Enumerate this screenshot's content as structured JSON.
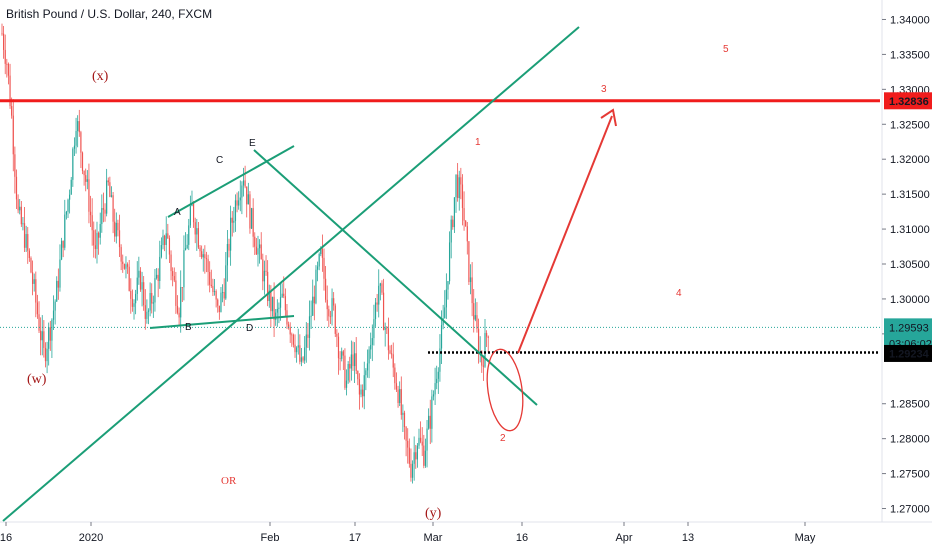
{
  "title": "British Pound / U.S. Dollar, 240, FXCM",
  "colors": {
    "up": "#26a69a",
    "down": "#ef5350",
    "trendline": "#1b9e77",
    "resistance": "#f01c1c",
    "annotation_red": "#e53935",
    "wave_dark_red": "#a31515",
    "current_price": "#26a69a",
    "axis_text": "#131722"
  },
  "price_axis": {
    "ticks": [
      "1.34000",
      "1.33500",
      "1.33000",
      "1.32500",
      "1.32000",
      "1.31500",
      "1.31000",
      "1.30500",
      "1.30000",
      "1.29500",
      "1.28500",
      "1.28000",
      "1.27500",
      "1.27000"
    ]
  },
  "time_axis": {
    "ticks": [
      "16",
      "2020",
      "Feb",
      "17",
      "Mar",
      "16",
      "Apr",
      "13",
      "May"
    ]
  },
  "price_labels": {
    "resistance": "1.32836",
    "current": "1.29593",
    "countdown": "03:06:02",
    "level": "1.29234"
  },
  "wave_labels": {
    "x": "(x)",
    "w": "(w)",
    "y": "(y)",
    "A": "A",
    "B": "B",
    "C": "C",
    "D": "D",
    "E": "E",
    "one": "1",
    "two": "2",
    "three": "3",
    "four": "4",
    "five": "5",
    "or": "OR"
  },
  "chart_data": {
    "type": "candlestick",
    "symbol": "British Pound / U.S. Dollar",
    "timeframe": "240",
    "source": "FXCM",
    "ylim": [
      1.2685,
      1.3415
    ],
    "x_ticks": [
      "16",
      "2020",
      "Feb",
      "17",
      "Mar",
      "16",
      "Apr",
      "13",
      "May"
    ],
    "close_path": [
      [
        0,
        1.338
      ],
      [
        3,
        1.334
      ],
      [
        6,
        1.326
      ],
      [
        10,
        1.312
      ],
      [
        14,
        1.309
      ],
      [
        18,
        1.304
      ],
      [
        22,
        1.298
      ],
      [
        26,
        1.292
      ],
      [
        30,
        1.296
      ],
      [
        34,
        1.301
      ],
      [
        38,
        1.309
      ],
      [
        42,
        1.316
      ],
      [
        46,
        1.326
      ],
      [
        50,
        1.32
      ],
      [
        54,
        1.314
      ],
      [
        58,
        1.306
      ],
      [
        62,
        1.312
      ],
      [
        66,
        1.316
      ],
      [
        70,
        1.31
      ],
      [
        74,
        1.307
      ],
      [
        78,
        1.303
      ],
      [
        82,
        1.3
      ],
      [
        86,
        1.303
      ],
      [
        90,
        1.297
      ],
      [
        94,
        1.301
      ],
      [
        98,
        1.305
      ],
      [
        102,
        1.31
      ],
      [
        106,
        1.303
      ],
      [
        110,
        1.299
      ],
      [
        114,
        1.307
      ],
      [
        118,
        1.313
      ],
      [
        122,
        1.309
      ],
      [
        126,
        1.306
      ],
      [
        130,
        1.302
      ],
      [
        134,
        1.298
      ],
      [
        138,
        1.302
      ],
      [
        142,
        1.31
      ],
      [
        146,
        1.315
      ],
      [
        150,
        1.318
      ],
      [
        154,
        1.312
      ],
      [
        158,
        1.308
      ],
      [
        162,
        1.304
      ],
      [
        166,
        1.3
      ],
      [
        170,
        1.297
      ],
      [
        174,
        1.3
      ],
      [
        178,
        1.297
      ],
      [
        182,
        1.294
      ],
      [
        186,
        1.29
      ],
      [
        190,
        1.295
      ],
      [
        194,
        1.301
      ],
      [
        198,
        1.306
      ],
      [
        202,
        1.3
      ],
      [
        206,
        1.298
      ],
      [
        210,
        1.292
      ],
      [
        214,
        1.288
      ],
      [
        218,
        1.292
      ],
      [
        222,
        1.286
      ],
      [
        226,
        1.289
      ],
      [
        230,
        1.296
      ],
      [
        234,
        1.302
      ],
      [
        238,
        1.296
      ],
      [
        242,
        1.291
      ],
      [
        246,
        1.287
      ],
      [
        250,
        1.28
      ],
      [
        254,
        1.276
      ],
      [
        258,
        1.28
      ],
      [
        262,
        1.278
      ],
      [
        266,
        1.283
      ],
      [
        270,
        1.29
      ],
      [
        274,
        1.296
      ],
      [
        278,
        1.307
      ],
      [
        282,
        1.317
      ],
      [
        286,
        1.314
      ],
      [
        290,
        1.304
      ],
      [
        294,
        1.296
      ],
      [
        298,
        1.291
      ],
      [
        302,
        1.296
      ]
    ],
    "horizontal_levels": [
      {
        "price": 1.32836,
        "label": "1.32836"
      },
      {
        "price": 1.29593,
        "label": "1.29593"
      },
      {
        "price": 1.29234,
        "label": "1.29234"
      }
    ],
    "wave_count": [
      "(w)",
      "(x)",
      "(y)",
      "A",
      "B",
      "C",
      "D",
      "E",
      "1",
      "2",
      "3",
      "4",
      "5"
    ]
  }
}
